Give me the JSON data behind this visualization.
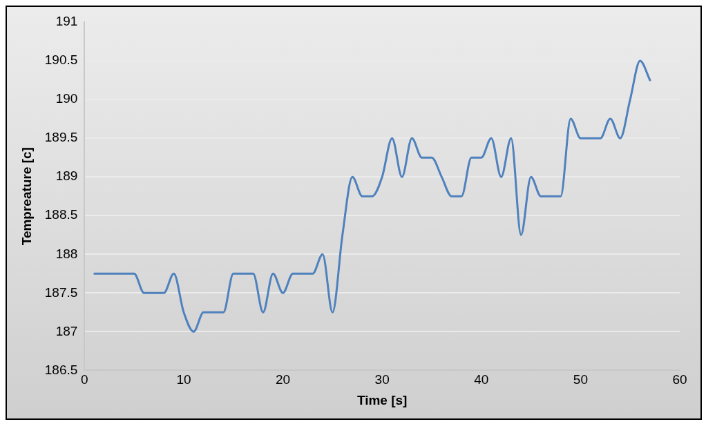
{
  "chart_data": {
    "type": "line",
    "xlabel": "Time [s]",
    "ylabel": "Tempreature [c]",
    "xlim": [
      0,
      60
    ],
    "xticks": [
      0,
      10,
      20,
      30,
      40,
      50,
      60
    ],
    "ylim": [
      186.5,
      191
    ],
    "yticks": [
      186.5,
      187,
      187.5,
      188,
      188.5,
      189,
      189.5,
      190,
      190.5,
      191
    ],
    "grid": "y",
    "marker": "none",
    "line_style": "solid",
    "x": [
      1,
      2,
      3,
      4,
      5,
      6,
      7,
      8,
      9,
      10,
      11,
      12,
      13,
      14,
      15,
      16,
      17,
      18,
      19,
      20,
      21,
      22,
      23,
      24,
      25,
      26,
      27,
      28,
      29,
      30,
      31,
      32,
      33,
      34,
      35,
      36,
      37,
      38,
      39,
      40,
      41,
      42,
      43,
      44,
      45,
      46,
      47,
      48,
      49,
      50,
      51,
      52,
      53,
      54,
      55,
      56,
      57
    ],
    "series": [
      {
        "color": "#4f81bd",
        "values": [
          187.75,
          187.75,
          187.75,
          187.75,
          187.75,
          187.5,
          187.5,
          187.5,
          187.75,
          187.25,
          187,
          187.25,
          187.25,
          187.25,
          187.75,
          187.75,
          187.75,
          187.25,
          187.75,
          187.5,
          187.75,
          187.75,
          187.75,
          188,
          187.25,
          188.25,
          189,
          188.75,
          188.75,
          189,
          189.5,
          189,
          189.5,
          189.25,
          189.25,
          189,
          188.75,
          188.75,
          189.25,
          189.25,
          189.5,
          189,
          189.5,
          188.25,
          189,
          188.75,
          188.75,
          188.75,
          189.75,
          189.5,
          189.5,
          189.5,
          189.75,
          189.5,
          190,
          190.5,
          190.25
        ]
      }
    ]
  }
}
